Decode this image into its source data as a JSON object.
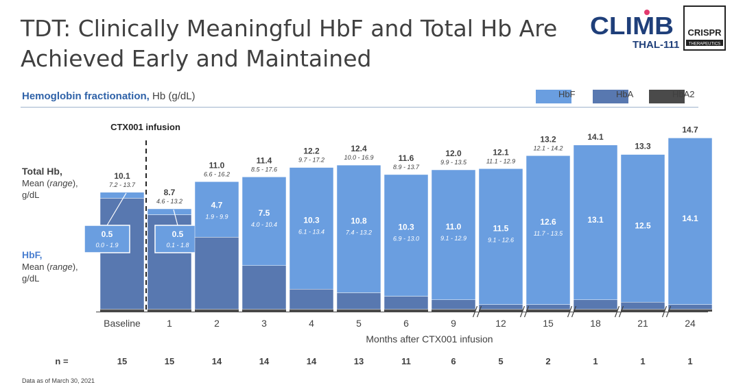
{
  "title": "TDT: Clinically Meaningful HbF and Total Hb Are Achieved Early and Maintained",
  "logos": {
    "climb": "CLIMB",
    "climb_sub": "THAL-111",
    "crispr": "CRISPR",
    "crispr_sub": "THERAPEUTICS"
  },
  "subtitle": {
    "lead": "Hemoglobin fractionation,",
    "rest": " Hb (g/dL)"
  },
  "legend": [
    "HbF",
    "HbA",
    "HbA2"
  ],
  "colors": {
    "HbF": "#6a9ee0",
    "HbA": "#5878b0",
    "HbA2": "#4a4a4a",
    "accent": "#2f62a8"
  },
  "left_labels": {
    "total_title": "Total Hb,",
    "total_mean": "Mean (",
    "total_range": "range",
    "total_close": "),",
    "total_unit": "g/dL",
    "hbf_title": "HbF,",
    "hbf_mean": "Mean (",
    "hbf_range": "range",
    "hbf_close": "),",
    "hbf_unit": "g/dL"
  },
  "infusion_label": "CTX001 infusion",
  "footnote": "Data as of March 30, 2021",
  "chart_data": {
    "type": "bar",
    "stacked": true,
    "xlabel": "Months after CTX001 infusion",
    "categories": [
      "Baseline",
      "1",
      "2",
      "3",
      "4",
      "5",
      "6",
      "9",
      "12",
      "15",
      "18",
      "21",
      "24"
    ],
    "axis_breaks_before": [
      "12",
      "15",
      "18",
      "21",
      "24"
    ],
    "series": [
      {
        "name": "HbA2",
        "values": [
          0.2,
          0.2,
          0.2,
          0.2,
          0.2,
          0.2,
          0.2,
          0.2,
          0.2,
          0.2,
          0.2,
          0.2,
          0.2
        ]
      },
      {
        "name": "HbA",
        "values": [
          9.4,
          8.0,
          6.1,
          3.7,
          1.7,
          1.4,
          1.1,
          0.8,
          0.4,
          0.4,
          0.8,
          0.6,
          0.4
        ]
      },
      {
        "name": "HbF",
        "values": [
          0.5,
          0.5,
          4.7,
          7.5,
          10.3,
          10.8,
          10.3,
          11.0,
          11.5,
          12.6,
          13.1,
          12.5,
          14.1
        ]
      }
    ],
    "total_hb": [
      10.1,
      8.7,
      11.0,
      11.4,
      12.2,
      12.4,
      11.6,
      12.0,
      12.1,
      13.2,
      14.1,
      13.3,
      14.7
    ],
    "total_hb_range": [
      "7.2 - 13.7",
      "4.6 - 13.2",
      "6.6 - 16.2",
      "8.5 - 17.6",
      "9.7 - 17.2",
      "10.0 - 16.9",
      "8.9 - 13.7",
      "9.9 - 13.5",
      "11.1 - 12.9",
      "12.1 - 14.2",
      "",
      "",
      ""
    ],
    "hbf": [
      0.5,
      0.5,
      4.7,
      7.5,
      10.3,
      10.8,
      10.3,
      11.0,
      11.5,
      12.6,
      13.1,
      12.5,
      14.1
    ],
    "hbf_range": [
      "0.0 - 1.9",
      "0.1 - 1.8",
      "1.9 - 9.9",
      "4.0 - 10.4",
      "6.1 - 13.4",
      "7.4 - 13.2",
      "6.9 - 13.0",
      "9.1 - 12.9",
      "9.1 - 12.6",
      "11.7 - 13.5",
      "",
      "",
      ""
    ],
    "n_label": "n =",
    "n": [
      15,
      15,
      14,
      14,
      14,
      13,
      11,
      6,
      5,
      2,
      1,
      1,
      1
    ],
    "ylim": [
      0,
      15
    ],
    "grid": false,
    "legend_position": "top-right"
  }
}
